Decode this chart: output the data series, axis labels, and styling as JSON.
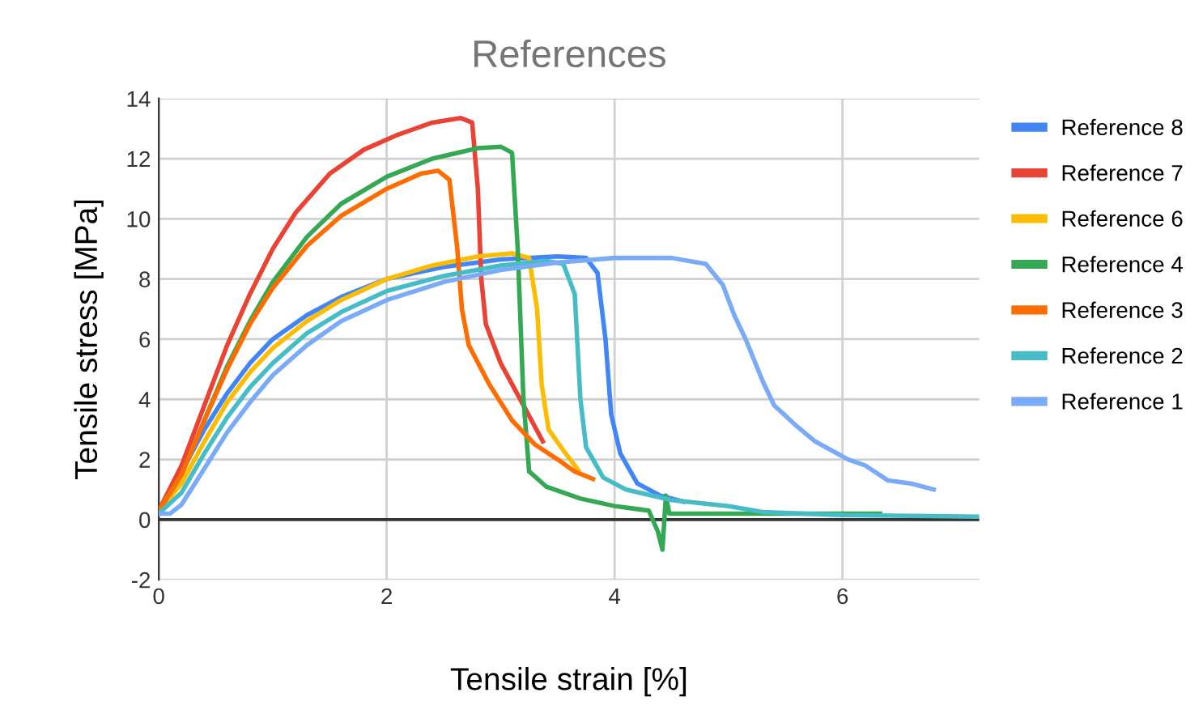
{
  "chart_data": {
    "type": "line",
    "title": "References",
    "xlabel": "Tensile strain [%]",
    "ylabel": "Tensile stress [MPa]",
    "xlim": [
      0,
      7.2
    ],
    "xticks": [
      0,
      2,
      4,
      6
    ],
    "ylim": [
      -2,
      14
    ],
    "yticks": [
      -2,
      0,
      2,
      4,
      6,
      8,
      10,
      12,
      14
    ],
    "grid": true,
    "legend": "right",
    "marker": "none",
    "line_style": "solid",
    "ref_lines": [
      {
        "axis": "y",
        "value": 0,
        "color": "#333333"
      }
    ],
    "series": [
      {
        "name": "Reference 8",
        "color": "#4285f4",
        "x": [
          0,
          0.2,
          0.4,
          0.6,
          0.8,
          1.0,
          1.3,
          1.6,
          2.0,
          2.5,
          3.0,
          3.5,
          3.75,
          3.85,
          3.92,
          3.97,
          4.05,
          4.2,
          4.4,
          4.6
        ],
        "values": [
          0.3,
          1.6,
          3.0,
          4.2,
          5.2,
          6.0,
          6.8,
          7.4,
          8.0,
          8.4,
          8.65,
          8.75,
          8.7,
          8.2,
          6,
          3.5,
          2.2,
          1.2,
          0.8,
          0.6
        ]
      },
      {
        "name": "Reference 7",
        "color": "#ea4335",
        "x": [
          0,
          0.2,
          0.4,
          0.6,
          0.8,
          1.0,
          1.2,
          1.5,
          1.8,
          2.1,
          2.4,
          2.65,
          2.75,
          2.8,
          2.83,
          2.87,
          3.0,
          3.2,
          3.37
        ],
        "values": [
          0.3,
          1.8,
          3.8,
          5.8,
          7.5,
          9.0,
          10.2,
          11.5,
          12.3,
          12.8,
          13.2,
          13.35,
          13.2,
          11,
          8,
          6.5,
          5.2,
          3.8,
          2.6
        ]
      },
      {
        "name": "Reference 6",
        "color": "#fbbc04",
        "x": [
          0,
          0.2,
          0.4,
          0.6,
          0.8,
          1.0,
          1.3,
          1.6,
          2.0,
          2.4,
          2.8,
          3.1,
          3.25,
          3.32,
          3.36,
          3.42,
          3.55,
          3.68
        ],
        "values": [
          0.3,
          1.2,
          2.6,
          3.9,
          4.9,
          5.7,
          6.6,
          7.3,
          8.0,
          8.45,
          8.75,
          8.85,
          8.7,
          7,
          4.5,
          3.0,
          2.3,
          1.65
        ]
      },
      {
        "name": "Reference 4",
        "color": "#34a853",
        "x": [
          0,
          0.2,
          0.4,
          0.6,
          0.8,
          1.0,
          1.3,
          1.6,
          2.0,
          2.4,
          2.8,
          3.0,
          3.1,
          3.15,
          3.2,
          3.25,
          3.4,
          3.7,
          4.0,
          4.2,
          4.3,
          4.38,
          4.42,
          4.45,
          4.48,
          5.5,
          6.33
        ],
        "values": [
          0.3,
          1.5,
          3.3,
          5.1,
          6.6,
          7.9,
          9.4,
          10.5,
          11.4,
          12.0,
          12.35,
          12.4,
          12.2,
          9,
          4,
          1.6,
          1.1,
          0.7,
          0.45,
          0.35,
          0.3,
          -0.4,
          -1.0,
          0.8,
          0.2,
          0.2,
          0.2
        ]
      },
      {
        "name": "Reference 3",
        "color": "#ff6d01",
        "x": [
          0,
          0.2,
          0.4,
          0.6,
          0.8,
          1.0,
          1.3,
          1.6,
          2.0,
          2.3,
          2.45,
          2.55,
          2.62,
          2.66,
          2.72,
          2.9,
          3.1,
          3.3,
          3.5,
          3.65,
          3.81
        ],
        "values": [
          0.3,
          1.5,
          3.3,
          5.0,
          6.5,
          7.7,
          9.1,
          10.1,
          11.0,
          11.5,
          11.6,
          11.3,
          9,
          7,
          5.8,
          4.5,
          3.3,
          2.5,
          2.0,
          1.6,
          1.35
        ]
      },
      {
        "name": "Reference 2",
        "color": "#46bdc6",
        "x": [
          0,
          0.2,
          0.4,
          0.6,
          0.8,
          1.0,
          1.3,
          1.6,
          2.0,
          2.5,
          3.0,
          3.4,
          3.55,
          3.65,
          3.7,
          3.75,
          3.9,
          4.1,
          4.5,
          5.0,
          5.3,
          6.0,
          7.2
        ],
        "values": [
          0.2,
          0.9,
          2.2,
          3.4,
          4.4,
          5.2,
          6.2,
          6.9,
          7.6,
          8.1,
          8.45,
          8.6,
          8.5,
          7.5,
          4,
          2.4,
          1.4,
          1.0,
          0.65,
          0.45,
          0.25,
          0.15,
          0.1
        ]
      },
      {
        "name": "Reference 1",
        "color": "#7baaf7",
        "x": [
          0,
          0.1,
          0.2,
          0.4,
          0.6,
          0.8,
          1.0,
          1.3,
          1.6,
          2.0,
          2.5,
          3.0,
          3.5,
          4.0,
          4.5,
          4.8,
          4.95,
          5.05,
          5.15,
          5.3,
          5.4,
          5.6,
          5.76,
          6.05,
          6.2,
          6.4,
          6.6,
          6.8
        ],
        "values": [
          0.2,
          0.2,
          0.5,
          1.7,
          2.9,
          3.9,
          4.8,
          5.8,
          6.6,
          7.3,
          7.9,
          8.3,
          8.55,
          8.7,
          8.7,
          8.5,
          7.8,
          6.8,
          6.0,
          4.6,
          3.8,
          3.1,
          2.6,
          2.0,
          1.8,
          1.3,
          1.2,
          1.0
        ]
      }
    ]
  }
}
